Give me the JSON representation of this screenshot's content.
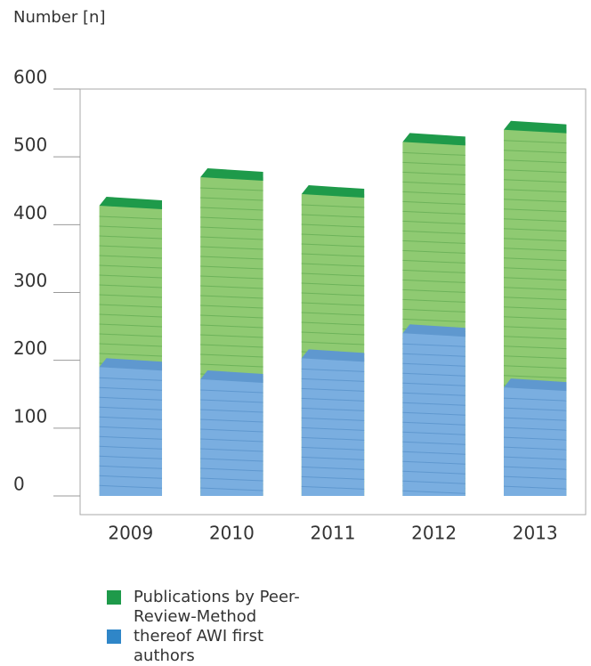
{
  "chart_data": {
    "type": "bar",
    "y_label": "Number [n]",
    "categories": [
      "2009",
      "2010",
      "2011",
      "2012",
      "2013"
    ],
    "series": [
      {
        "name": "Publications by Peer-Review-Method",
        "color": "#1e9a4a",
        "values": [
          428,
          470,
          445,
          522,
          540
        ]
      },
      {
        "name": "thereof AWI first authors",
        "color": "#2f86c8",
        "values": [
          190,
          172,
          203,
          240,
          160
        ]
      }
    ],
    "ylim": [
      0,
      600
    ],
    "yticks": [
      0,
      100,
      200,
      300,
      400,
      500,
      600
    ]
  }
}
